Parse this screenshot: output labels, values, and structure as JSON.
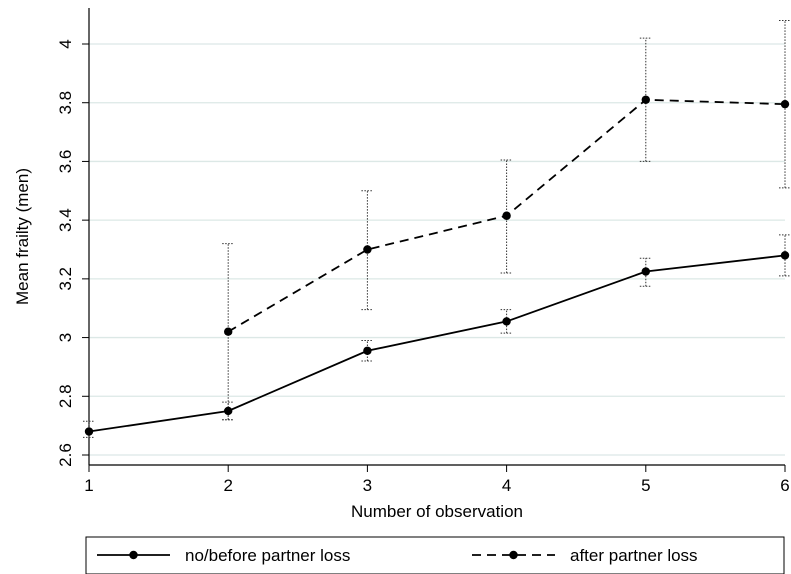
{
  "chart_data": {
    "type": "line",
    "title": "",
    "xlabel": "Number of observation",
    "ylabel": "Mean frailty (men)",
    "x": [
      1,
      2,
      3,
      4,
      5,
      6
    ],
    "x_ticks": [
      "1",
      "2",
      "3",
      "4",
      "5",
      "6"
    ],
    "xlim": [
      1,
      6
    ],
    "ylim": [
      2.6,
      4.08
    ],
    "y_ticks": [
      "2.6",
      "2.8",
      "3",
      "3.2",
      "3.4",
      "3.6",
      "3.8",
      "4"
    ],
    "grid": true,
    "legend_position": "bottom",
    "series": [
      {
        "name": "no/before partner loss",
        "line_style": "solid",
        "x": [
          1,
          2,
          3,
          4,
          5,
          6
        ],
        "values": [
          2.68,
          2.75,
          2.955,
          3.055,
          3.225,
          3.28
        ],
        "ci_low": [
          2.66,
          2.72,
          2.92,
          3.015,
          3.175,
          3.21
        ],
        "ci_high": [
          2.715,
          2.78,
          2.99,
          3.095,
          3.27,
          3.35
        ]
      },
      {
        "name": "after partner loss",
        "line_style": "dashed",
        "x": [
          2,
          3,
          4,
          5,
          6
        ],
        "values": [
          3.02,
          3.3,
          3.415,
          3.81,
          3.795
        ],
        "ci_low": [
          2.72,
          3.095,
          3.22,
          3.6,
          3.51
        ],
        "ci_high": [
          3.32,
          3.5,
          3.605,
          4.02,
          4.08
        ]
      }
    ],
    "colors": {
      "line": "#000000",
      "grid": "#dce8e6",
      "axis": "#000000"
    }
  }
}
